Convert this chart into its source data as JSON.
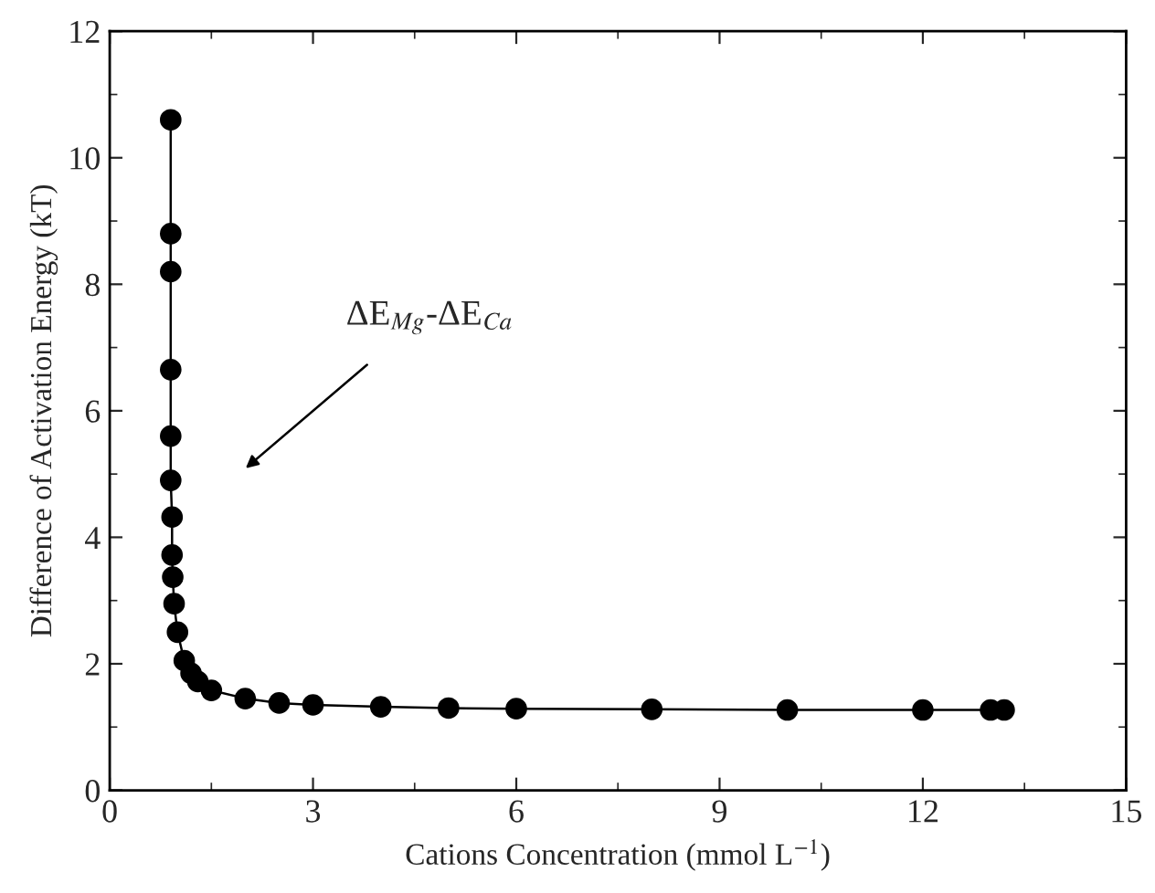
{
  "chart_data": {
    "type": "line",
    "xlabel": "Cations Concentration (mmol L$^{−1}$)",
    "ylabel": "Difference of Activation Energy (kT)",
    "x": [
      0.9,
      0.9,
      0.9,
      0.9,
      0.9,
      0.9,
      0.92,
      0.92,
      0.93,
      0.95,
      1.0,
      1.1,
      1.2,
      1.3,
      1.5,
      2,
      2.5,
      3,
      4,
      5,
      6,
      8,
      10,
      12,
      13,
      13.2
    ],
    "series": [
      {
        "color": "#000000",
        "values": [
          10.6,
          8.8,
          8.2,
          6.65,
          5.6,
          4.9,
          4.32,
          3.72,
          3.37,
          2.95,
          2.5,
          2.05,
          1.85,
          1.72,
          1.58,
          1.45,
          1.38,
          1.35,
          1.32,
          1.3,
          1.29,
          1.28,
          1.27,
          1.27,
          1.27,
          1.27
        ]
      }
    ],
    "marker": "circle",
    "line_style": "solid",
    "grid": false,
    "xlim": [
      0,
      15
    ],
    "xticks": [
      0,
      3,
      6,
      9,
      12,
      15
    ],
    "ylim": [
      0,
      12
    ],
    "yticks": [
      0,
      2,
      4,
      6,
      8,
      10,
      12
    ],
    "annotations": [
      "ΔE$_{Mg}$-ΔE$_{Ca}$"
    ]
  }
}
